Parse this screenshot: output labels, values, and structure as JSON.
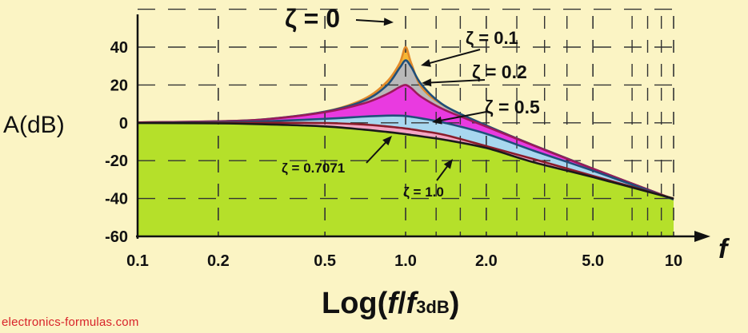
{
  "chart_data": {
    "type": "line",
    "title": "",
    "xlabel": {
      "prefix": "Log(",
      "f": "f",
      "slash": "/",
      "f3": "f",
      "sub": "3dB",
      "close": ")"
    },
    "ylabel": "A(dB)",
    "x_axis_symbol": "f",
    "x_scale": "log",
    "xlim": [
      0.1,
      10
    ],
    "ylim": [
      -60,
      60
    ],
    "x_ticks": [
      0.1,
      0.2,
      0.5,
      1.0,
      2.0,
      5.0,
      10
    ],
    "x_tick_labels": [
      "0.1",
      "0.2",
      "0.5",
      "1.0",
      "2.0",
      "5.0",
      "10"
    ],
    "y_ticks": [
      40,
      20,
      0,
      -20,
      -40,
      -60
    ],
    "y_tick_labels": [
      "40",
      "20",
      "0",
      "-20",
      "-40",
      "-60"
    ],
    "grid": true,
    "x": [
      0.1,
      0.2,
      0.3,
      0.5,
      0.7,
      0.85,
      0.95,
      1.0,
      1.05,
      1.15,
      1.4,
      2.0,
      3.0,
      5.0,
      10
    ],
    "series": [
      {
        "name": "ζ = 0",
        "values": [
          0.2,
          0.8,
          1.9,
          5.9,
          12.6,
          21.6,
          31.4,
          40,
          31.4,
          18.6,
          8.9,
          -1.4,
          -11.8,
          -24.2,
          -40.4
        ],
        "fill": "#f6b733",
        "stroke": "#e28a2a"
      },
      {
        "name": "ζ = 0.1",
        "values": [
          0.2,
          0.8,
          1.9,
          5.9,
          11.7,
          19.7,
          29.0,
          33,
          29.5,
          20.0,
          9.0,
          -1.4,
          -11.8,
          -24.2,
          -40.4
        ],
        "fill": "#b9b9b9",
        "stroke": "#1f4f7a"
      },
      {
        "name": "ζ = 0.2",
        "values": [
          0.2,
          0.8,
          1.8,
          5.6,
          10.3,
          15.1,
          18.9,
          20,
          18.3,
          13.5,
          6.8,
          -2.0,
          -12.0,
          -24.3,
          -40.4
        ],
        "fill": "#e93ae0",
        "stroke": "#9c1a5a"
      },
      {
        "name": "ζ = 0.5",
        "values": [
          0.0,
          0.4,
          0.8,
          2.1,
          3.3,
          3.8,
          3.8,
          3.6,
          3.2,
          2.3,
          0.0,
          -5.8,
          -14.7,
          -25.3,
          -40.5
        ],
        "fill": "#a8d7ef",
        "stroke": "#1f4f7a"
      },
      {
        "name": "ζ = 0.7071",
        "values": [
          0.0,
          0.0,
          0.0,
          -0.1,
          -0.9,
          -1.9,
          -2.6,
          -3.0,
          -3.4,
          -4.3,
          -6.4,
          -12.3,
          -19.1,
          -28.0,
          -40.0
        ],
        "fill": "#f4a6c4",
        "stroke": "#8a1c2a"
      },
      {
        "name": "ζ = 1.0",
        "values": [
          -0.1,
          -0.3,
          -0.8,
          -1.9,
          -3.6,
          -4.8,
          -5.6,
          -6.0,
          -6.4,
          -7.2,
          -9.0,
          -13.3,
          -20.8,
          -28.7,
          -40.1
        ],
        "fill": "#b5e02a",
        "stroke": "#1a1a1a"
      }
    ],
    "annotations": [
      {
        "text": "ζ = 0",
        "series": "ζ = 0"
      },
      {
        "text": "ζ = 0.1",
        "series": "ζ = 0.1"
      },
      {
        "text": "ζ = 0.2",
        "series": "ζ = 0.2"
      },
      {
        "text": "ζ = 0.5",
        "series": "ζ = 0.5"
      },
      {
        "text": "ζ = 0.7071",
        "series": "ζ = 0.7071"
      },
      {
        "text": "ζ = 1.0",
        "series": "ζ = 1.0"
      }
    ]
  },
  "credit": "electronics-formulas.com"
}
